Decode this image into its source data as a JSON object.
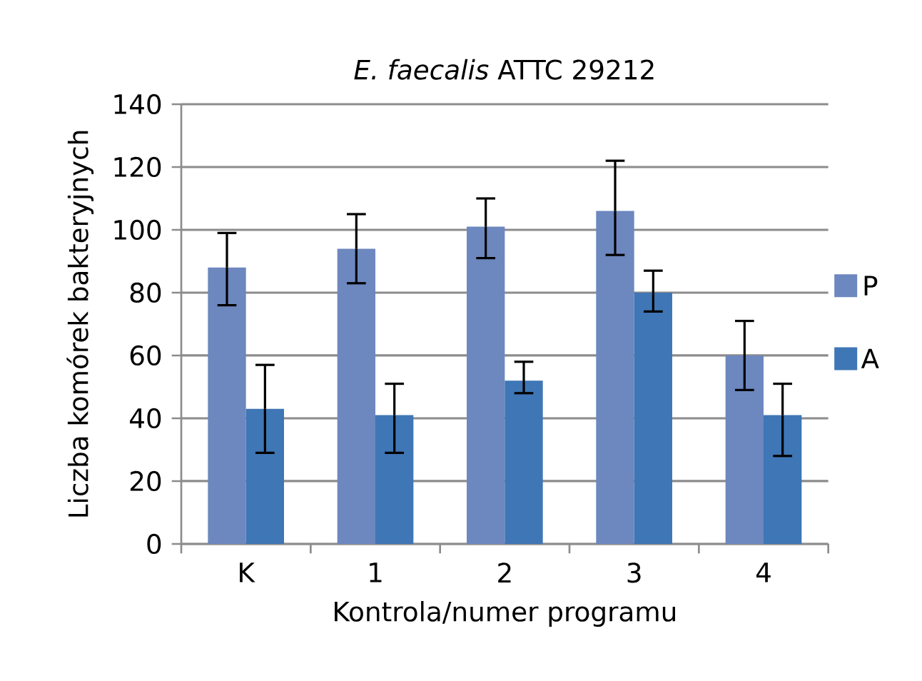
{
  "chart_data": {
    "type": "bar",
    "title": "*E. faecalis* ATTC 29212",
    "xlabel": "Kontrola/numer programu",
    "ylabel": "Liczba komórek bakteryjnych",
    "categories": [
      "K",
      "1",
      "2",
      "3",
      "4"
    ],
    "series": [
      {
        "name": "P",
        "color": "#6d87bf",
        "values": [
          88,
          94,
          101,
          106,
          60
        ],
        "errors": [
          [
            76,
            99
          ],
          [
            83,
            105
          ],
          [
            91,
            110
          ],
          [
            92,
            122
          ],
          [
            49,
            71
          ]
        ]
      },
      {
        "name": "A",
        "color": "#3f76b5",
        "values": [
          43,
          41,
          52,
          80,
          41
        ],
        "errors": [
          [
            29,
            57
          ],
          [
            29,
            51
          ],
          [
            48,
            58
          ],
          [
            74,
            87
          ],
          [
            28,
            51
          ]
        ]
      }
    ],
    "ylim": [
      0,
      140
    ],
    "yticks": [
      0,
      20,
      40,
      60,
      80,
      100,
      120,
      140
    ],
    "grid": "y",
    "legend": "right"
  }
}
